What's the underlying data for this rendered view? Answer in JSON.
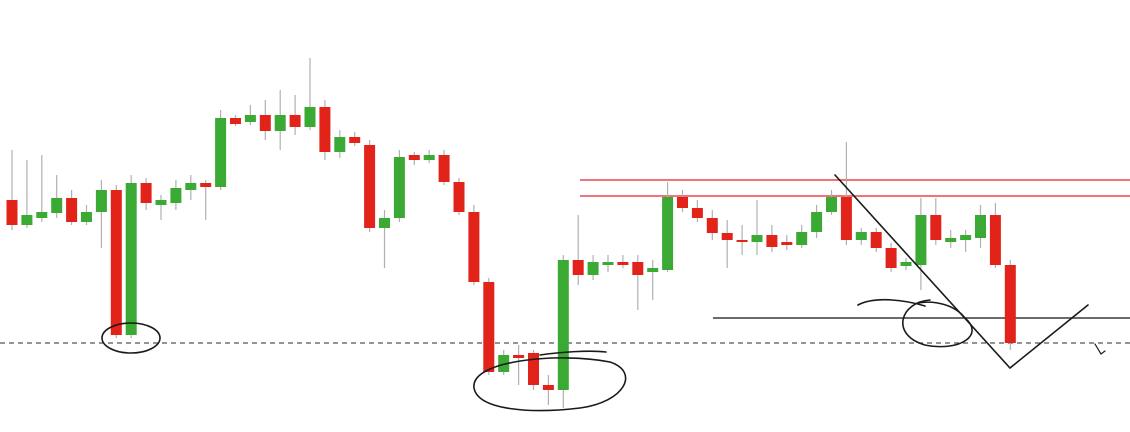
{
  "chart_data": {
    "type": "candlestick",
    "categories": [
      null,
      null,
      null,
      null,
      null,
      null,
      null,
      null,
      null,
      null,
      null,
      null,
      null,
      null,
      null,
      null,
      null,
      null,
      null,
      null,
      null,
      null,
      null,
      null,
      null,
      null,
      null,
      null,
      null,
      null,
      null,
      null,
      null,
      null,
      null,
      null,
      null,
      null,
      null,
      null,
      null,
      null,
      null,
      null,
      null,
      null,
      null,
      null,
      null,
      null,
      null,
      null,
      null,
      null,
      null,
      null,
      null,
      null,
      null,
      null,
      null,
      null,
      null,
      null,
      null,
      null,
      null,
      null
    ],
    "open": [
      232,
      207,
      214,
      219,
      234,
      210,
      220,
      242,
      97,
      249,
      227,
      229,
      242,
      249,
      245,
      314,
      310,
      317,
      301,
      317,
      305,
      325,
      280,
      295,
      287,
      204,
      214,
      277,
      272,
      277,
      250,
      220,
      150,
      60,
      77,
      79,
      47,
      42,
      172,
      157,
      167,
      170,
      170,
      160,
      162,
      235,
      224,
      214,
      199,
      192,
      190,
      197,
      190,
      187,
      200,
      220,
      235,
      192,
      200,
      184,
      166,
      167,
      217,
      190,
      192,
      194,
      217,
      167
    ],
    "high": [
      282,
      272,
      277,
      257,
      242,
      227,
      252,
      247,
      257,
      254,
      237,
      252,
      257,
      252,
      322,
      317,
      327,
      332,
      342,
      337,
      374,
      332,
      302,
      300,
      292,
      222,
      282,
      280,
      282,
      282,
      254,
      227,
      154,
      82,
      87,
      82,
      57,
      177,
      217,
      177,
      177,
      177,
      177,
      172,
      250,
      242,
      232,
      222,
      212,
      207,
      232,
      207,
      197,
      207,
      227,
      242,
      290,
      204,
      204,
      189,
      174,
      234,
      234,
      202,
      202,
      227,
      229,
      172
    ],
    "low": [
      202,
      204,
      210,
      214,
      207,
      207,
      184,
      94,
      94,
      222,
      212,
      222,
      232,
      212,
      242,
      306,
      307,
      292,
      282,
      297,
      302,
      272,
      274,
      286,
      200,
      164,
      210,
      267,
      269,
      247,
      217,
      147,
      57,
      57,
      47,
      42,
      27,
      24,
      147,
      152,
      160,
      164,
      122,
      132,
      160,
      220,
      210,
      192,
      164,
      177,
      177,
      180,
      182,
      184,
      194,
      217,
      187,
      187,
      180,
      160,
      162,
      142,
      187,
      184,
      180,
      184,
      164,
      82
    ],
    "close": [
      207,
      217,
      220,
      234,
      210,
      220,
      242,
      97,
      249,
      229,
      232,
      244,
      249,
      245,
      314,
      308,
      317,
      301,
      317,
      305,
      325,
      280,
      295,
      289,
      204,
      214,
      275,
      272,
      277,
      250,
      220,
      150,
      60,
      77,
      74,
      47,
      42,
      172,
      157,
      170,
      170,
      167,
      157,
      164,
      235,
      224,
      214,
      199,
      192,
      190,
      197,
      185,
      187,
      200,
      220,
      235,
      192,
      200,
      184,
      164,
      170,
      217,
      192,
      194,
      197,
      217,
      167,
      89
    ],
    "up_color": "#3aaa35",
    "down_color": "#e2231a",
    "ylim": [
      0,
      432
    ],
    "hlines": [
      {
        "value": 252,
        "color": "#e8474a",
        "style": "solid"
      },
      {
        "value": 236,
        "color": "#e8474a",
        "style": "solid"
      },
      {
        "value": 114,
        "color": "#3a3a3a",
        "style": "solid"
      },
      {
        "value": 89,
        "color": "#555555",
        "style": "dashed"
      }
    ]
  }
}
